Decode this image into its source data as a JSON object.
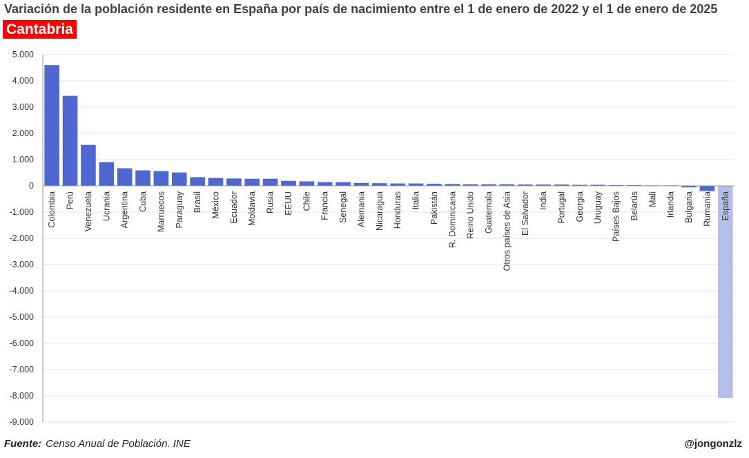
{
  "header": {
    "title": "Variación de la población residente en España por país de nacimiento entre el 1 de enero de 2022 y el 1 de enero de 2025",
    "region": "Cantabria"
  },
  "footer": {
    "source_label": "Fuente:",
    "source_text": "Censo Anual de Población. INE",
    "author": "@jongonzlz"
  },
  "colors": {
    "bar": "#4f67d1",
    "highlight_bar": "#b5bfe8",
    "grid": "#e3e3e3",
    "region_badge": "#ff0000"
  },
  "chart_data": {
    "type": "bar",
    "title": "Variación de la población residente en España por país de nacimiento entre el 1 de enero de 2022 y el 1 de enero de 2025",
    "subtitle": "Cantabria",
    "xlabel": "",
    "ylabel": "",
    "ylim": [
      -9000,
      5000
    ],
    "yticks": [
      5000,
      4000,
      3000,
      2000,
      1000,
      0,
      -1000,
      -2000,
      -3000,
      -4000,
      -5000,
      -6000,
      -7000,
      -8000,
      -9000
    ],
    "ytick_labels": [
      "5.000",
      "4.000",
      "3.000",
      "2.000",
      "1.000",
      "0",
      "-1.000",
      "-2.000",
      "-3.000",
      "-4.000",
      "-5.000",
      "-6.000",
      "-7.000",
      "-8.000",
      "-9.000"
    ],
    "grid": true,
    "legend": "none",
    "highlight_category": "España",
    "categories": [
      "Colombia",
      "Perú",
      "Venezuela",
      "Ucrania",
      "Argentina",
      "Cuba",
      "Marruecos",
      "Paraguay",
      "Brasil",
      "México",
      "Ecuador",
      "Moldavia",
      "Rusia",
      "EEUU",
      "Chile",
      "Francia",
      "Senegal",
      "Alemania",
      "Nicaragua",
      "Honduras",
      "Italia",
      "Pakistán",
      "R. Dominicana",
      "Reino Unido",
      "Guatemala",
      "Otros países de Asia",
      "El Salvador",
      "India",
      "Portugal",
      "Georgia",
      "Uruguay",
      "Países Bajos",
      "Belarús",
      "Mali",
      "Irlanda",
      "Bulgaria",
      "Rumanía",
      "España"
    ],
    "values": [
      4600,
      3430,
      1560,
      900,
      670,
      590,
      560,
      510,
      330,
      300,
      280,
      270,
      270,
      190,
      170,
      140,
      140,
      110,
      100,
      90,
      90,
      80,
      70,
      60,
      60,
      60,
      50,
      50,
      50,
      40,
      40,
      30,
      30,
      20,
      20,
      -60,
      -200,
      -8080
    ]
  }
}
